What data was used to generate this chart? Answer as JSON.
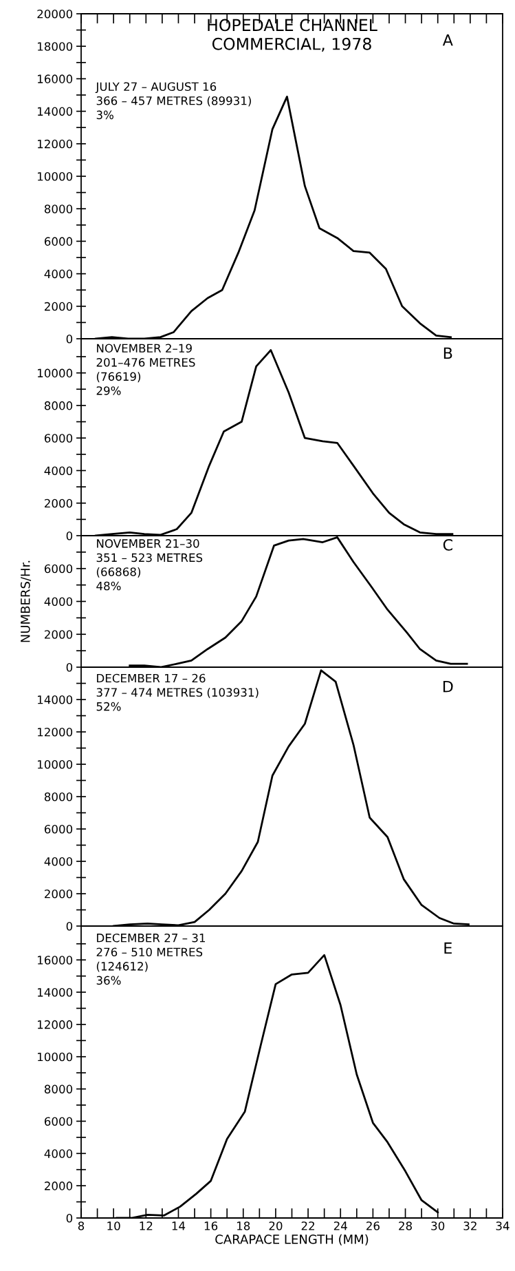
{
  "chart_data": [
    {
      "type": "line",
      "title": "HOPEDALE CHANNEL\nCOMMERCIAL, 1978",
      "annotations": [
        "JULY 27 – AUGUST 16\n366 – 457 METRES (89931)\n3%",
        "A"
      ],
      "color": "#000000",
      "xlim": [
        8,
        34
      ],
      "ylim": [
        0,
        20000
      ],
      "xticks": [
        8,
        9,
        10,
        11,
        12,
        13,
        14,
        15,
        16,
        17,
        18,
        19,
        20,
        21,
        22,
        23,
        24,
        25,
        26,
        27,
        28,
        29,
        30,
        31,
        32,
        33,
        34
      ],
      "yticks": [
        0,
        {
          "value": 1000,
          "label": null
        },
        2000,
        {
          "value": 3000,
          "label": null
        },
        4000,
        {
          "value": 5000,
          "label": null
        },
        6000,
        {
          "value": 7000,
          "label": null
        },
        8000,
        {
          "value": 9000,
          "label": null
        },
        10000,
        {
          "value": 11000,
          "label": null
        },
        12000,
        {
          "value": 13000,
          "label": null
        },
        14000,
        {
          "value": 15000,
          "label": null
        },
        16000,
        {
          "value": 17000,
          "label": null
        },
        18000,
        {
          "value": 19000,
          "label": null
        },
        20000
      ],
      "tick_labels": "y",
      "x": [
        8.9,
        9.9,
        10.9,
        11.9,
        12.9,
        13.7,
        14.8,
        15.8,
        16.7,
        17.7,
        18.7,
        19.8,
        20.7,
        21.8,
        22.7,
        23.8,
        24.8,
        25.8,
        26.8,
        27.8,
        28.9,
        29.9,
        30.8
      ],
      "values": [
        0,
        100,
        0,
        0,
        100,
        400,
        1700,
        2500,
        3000,
        5300,
        7900,
        12900,
        14900,
        9400,
        6800,
        6200,
        5400,
        5300,
        4300,
        2000,
        950,
        200,
        100
      ]
    },
    {
      "type": "line",
      "annotations": [
        "NOVEMBER 2–19\n201–476 METRES\n(76619)\n29%",
        "B"
      ],
      "color": "#000000",
      "xlim": [
        8,
        34
      ],
      "ylim": [
        0,
        12100
      ],
      "yticks": [
        0,
        {
          "value": 1000,
          "label": null
        },
        2000,
        {
          "value": 3000,
          "label": null
        },
        4000,
        {
          "value": 5000,
          "label": null
        },
        6000,
        {
          "value": 7000,
          "label": null
        },
        8000,
        {
          "value": 9000,
          "label": null
        },
        10000,
        {
          "value": 11000,
          "label": null
        }
      ],
      "tick_labels": "y",
      "x": [
        8.9,
        9.9,
        11.0,
        11.9,
        12.9,
        13.9,
        14.8,
        15.9,
        16.8,
        17.9,
        18.8,
        19.7,
        20.8,
        21.8,
        22.9,
        23.8,
        24.8,
        26.0,
        27.0,
        27.9,
        28.9,
        29.9,
        30.9
      ],
      "values": [
        0,
        100,
        200,
        100,
        50,
        400,
        1400,
        4300,
        6400,
        7000,
        10400,
        11400,
        8800,
        6000,
        5800,
        5700,
        4300,
        2600,
        1400,
        700,
        200,
        100,
        100
      ]
    },
    {
      "type": "line",
      "ylabel": "NUMBERS/Hr.",
      "annotations": [
        "NOVEMBER 21–30\n351 – 523 METRES\n(66868)\n48%",
        "C"
      ],
      "color": "#000000",
      "xlim": [
        8,
        34
      ],
      "ylim": [
        0,
        8000
      ],
      "yticks": [
        0,
        {
          "value": 1000,
          "label": null
        },
        2000,
        {
          "value": 3000,
          "label": null
        },
        4000,
        {
          "value": 5000,
          "label": null
        },
        6000,
        {
          "value": 7000,
          "label": null
        }
      ],
      "tick_labels": "y",
      "x": [
        11.0,
        11.9,
        12.9,
        13.9,
        14.8,
        15.8,
        16.9,
        17.9,
        18.8,
        19.9,
        20.8,
        21.7,
        22.9,
        23.8,
        24.8,
        25.9,
        26.9,
        28.1,
        28.9,
        29.9,
        30.8,
        31.8
      ],
      "values": [
        100,
        100,
        0,
        200,
        400,
        1100,
        1800,
        2800,
        4300,
        7400,
        7700,
        7800,
        7600,
        7900,
        6400,
        4900,
        3500,
        2100,
        1100,
        400,
        200,
        200
      ]
    },
    {
      "type": "line",
      "annotations": [
        "DECEMBER 17 – 26\n377 – 474 METRES (103931)\n52%",
        "D"
      ],
      "color": "#000000",
      "xlim": [
        8,
        34
      ],
      "ylim": [
        0,
        16000
      ],
      "yticks": [
        0,
        {
          "value": 1000,
          "label": null
        },
        2000,
        {
          "value": 3000,
          "label": null
        },
        4000,
        {
          "value": 5000,
          "label": null
        },
        6000,
        {
          "value": 7000,
          "label": null
        },
        8000,
        {
          "value": 9000,
          "label": null
        },
        10000,
        {
          "value": 11000,
          "label": null
        },
        12000,
        {
          "value": 13000,
          "label": null
        },
        14000,
        {
          "value": 15000,
          "label": null
        }
      ],
      "tick_labels": "y",
      "x": [
        10.0,
        11.0,
        12.1,
        13.0,
        14.0,
        15.0,
        15.9,
        16.9,
        17.9,
        18.9,
        19.8,
        20.8,
        21.8,
        22.8,
        23.7,
        24.8,
        25.8,
        26.9,
        27.9,
        29.0,
        30.1,
        31.0,
        31.9
      ],
      "values": [
        0,
        100,
        150,
        100,
        50,
        250,
        1000,
        2000,
        3400,
        5200,
        9300,
        11100,
        12500,
        15800,
        15100,
        11200,
        6700,
        5500,
        2900,
        1300,
        500,
        150,
        100
      ]
    },
    {
      "type": "line",
      "xlabel": "CARAPACE LENGTH (MM)",
      "annotations": [
        "DECEMBER 27 – 31\n276 – 510 METRES\n(124612)\n36%",
        "E"
      ],
      "color": "#000000",
      "xlim": [
        8,
        34
      ],
      "ylim": [
        0,
        18100
      ],
      "xticks": [
        8,
        {
          "value": 9,
          "label": null
        },
        10,
        {
          "value": 11,
          "label": null
        },
        12,
        {
          "value": 13,
          "label": null
        },
        14,
        {
          "value": 15,
          "label": null
        },
        16,
        {
          "value": 17,
          "label": null
        },
        18,
        {
          "value": 19,
          "label": null
        },
        20,
        {
          "value": 21,
          "label": null
        },
        22,
        {
          "value": 23,
          "label": null
        },
        24,
        {
          "value": 25,
          "label": null
        },
        26,
        {
          "value": 27,
          "label": null
        },
        28,
        {
          "value": 29,
          "label": null
        },
        30,
        {
          "value": 31,
          "label": null
        },
        32,
        {
          "value": 33,
          "label": null
        },
        34
      ],
      "yticks": [
        0,
        {
          "value": 1000,
          "label": null
        },
        2000,
        {
          "value": 3000,
          "label": null
        },
        4000,
        {
          "value": 5000,
          "label": null
        },
        6000,
        {
          "value": 7000,
          "label": null
        },
        8000,
        {
          "value": 9000,
          "label": null
        },
        10000,
        {
          "value": 11000,
          "label": null
        },
        12000,
        {
          "value": 13000,
          "label": null
        },
        14000,
        {
          "value": 15000,
          "label": null
        },
        16000,
        {
          "value": 17000,
          "label": null
        }
      ],
      "x": [
        10.2,
        11.1,
        12.1,
        13.1,
        14.1,
        15.1,
        16.0,
        17.0,
        18.1,
        19.1,
        20.0,
        21.0,
        22.0,
        23.0,
        24.0,
        25.0,
        26.0,
        26.9,
        28.0,
        29.0,
        30.0
      ],
      "values": [
        0,
        0,
        200,
        150,
        700,
        1500,
        2300,
        4900,
        6600,
        10800,
        14500,
        15100,
        15200,
        16300,
        13200,
        8900,
        5900,
        4700,
        2900,
        1100,
        350
      ]
    }
  ]
}
